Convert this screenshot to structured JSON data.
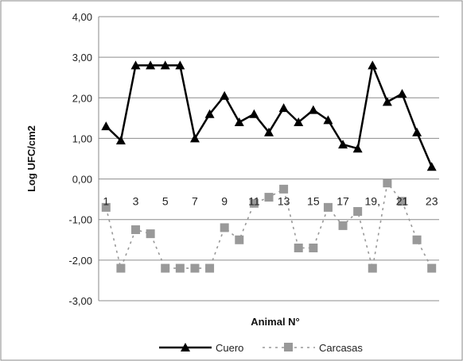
{
  "chart_data": {
    "type": "line",
    "ylabel": "Log UFC/cm2",
    "xlabel": "Animal N°",
    "ylim": [
      -3,
      4
    ],
    "yticks": [
      "4,00",
      "3,00",
      "2,00",
      "1,00",
      "0,00",
      "-1,00",
      "-2,00",
      "-3,00"
    ],
    "x": [
      1,
      2,
      3,
      4,
      5,
      6,
      7,
      8,
      9,
      10,
      11,
      12,
      13,
      14,
      15,
      16,
      17,
      18,
      19,
      20,
      21,
      22,
      23
    ],
    "x_tick_labels": [
      "1",
      "3",
      "5",
      "7",
      "9",
      "11",
      "13",
      "15",
      "17",
      "19,",
      "21",
      "23"
    ],
    "x_tick_positions": [
      1,
      3,
      5,
      7,
      9,
      11,
      13,
      15,
      17,
      19,
      21,
      23
    ],
    "grid": "horizontal",
    "legend": "bottom",
    "series": [
      {
        "name": "Cuero",
        "color": "#000000",
        "marker": "triangle",
        "values": [
          1.3,
          0.95,
          2.8,
          2.8,
          2.8,
          2.8,
          1.0,
          1.6,
          2.05,
          1.4,
          1.6,
          1.15,
          1.75,
          1.4,
          1.7,
          1.45,
          0.85,
          0.75,
          2.8,
          1.9,
          2.1,
          1.15,
          0.3
        ]
      },
      {
        "name": "Carcasas",
        "color": "#999999",
        "marker": "square",
        "values": [
          -0.7,
          -2.2,
          -1.25,
          -1.35,
          -2.2,
          -2.2,
          -2.2,
          -2.2,
          -1.2,
          -1.5,
          -0.6,
          -0.45,
          -0.25,
          -1.7,
          -1.7,
          -0.7,
          -1.15,
          -0.8,
          -2.2,
          -0.1,
          -0.55,
          -1.5,
          -2.2
        ]
      }
    ]
  }
}
